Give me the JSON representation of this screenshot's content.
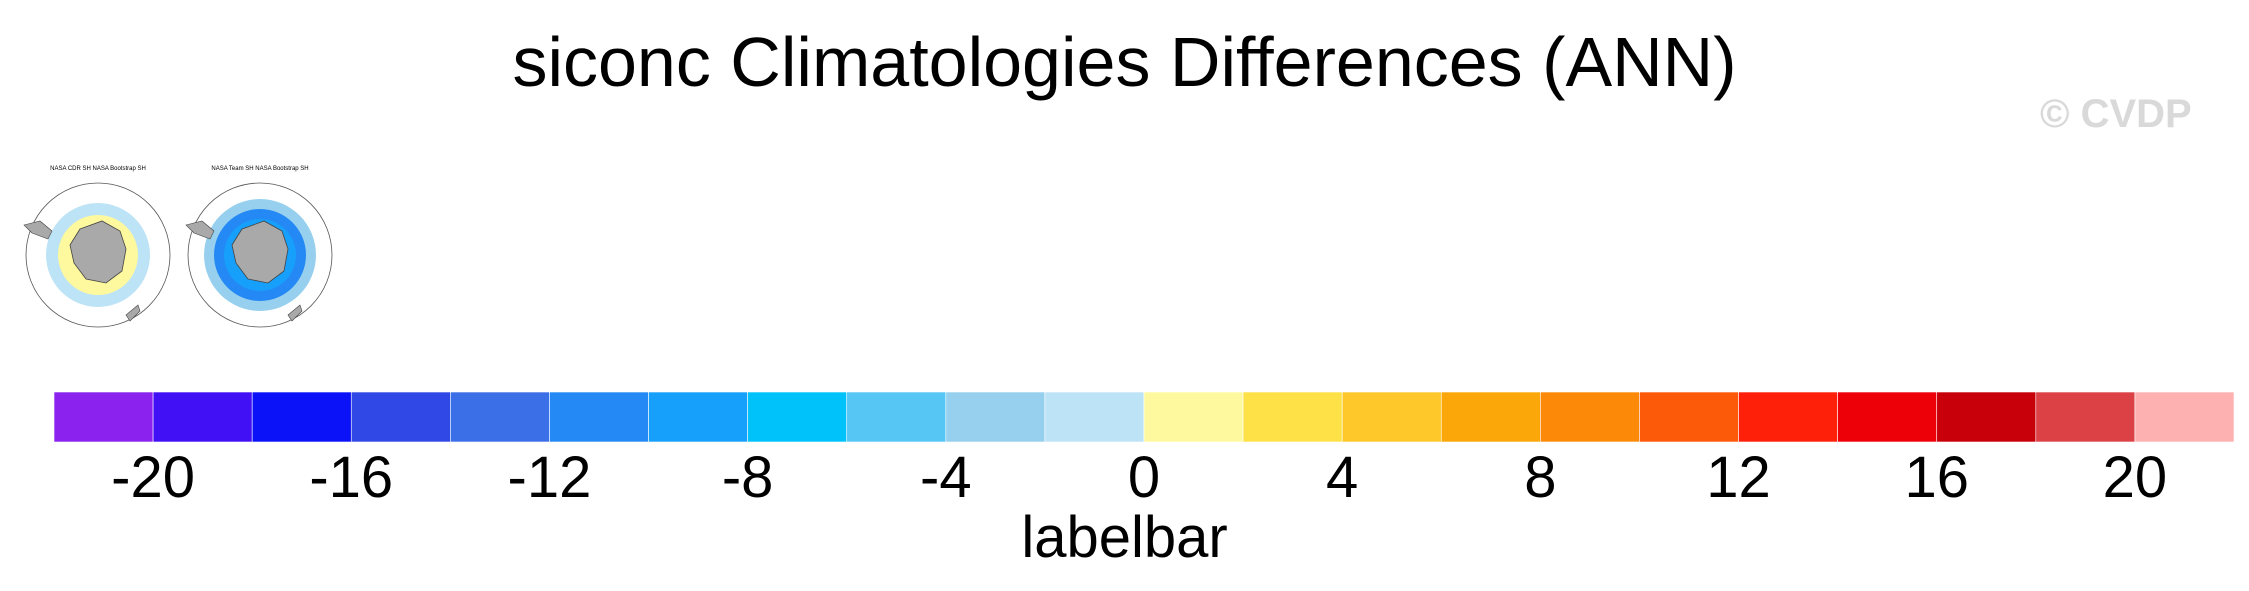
{
  "watermark": "© CVDP",
  "panels": [
    {
      "title": "NASA CDR SH NASA Bootstrap SH"
    },
    {
      "title": "NASA Team SH NASA Bootstrap SH"
    }
  ],
  "chart_data": {
    "type": "heatmap",
    "title": "siconc Climatologies Differences (ANN)",
    "colorbar": {
      "title": "labelbar",
      "range": [
        -22,
        22
      ],
      "boundaries": [
        -22,
        -20,
        -18,
        -16,
        -14,
        -12,
        -10,
        -8,
        -6,
        -4,
        -2,
        0,
        2,
        4,
        6,
        8,
        10,
        12,
        14,
        16,
        18,
        20,
        22
      ],
      "colors": [
        "#8b22ee",
        "#4110f5",
        "#0b12f7",
        "#3049e6",
        "#3a6fe8",
        "#2589f5",
        "#16a0fb",
        "#00c2fa",
        "#56c6f4",
        "#97d0ee",
        "#bde3f6",
        "#fef99e",
        "#fee146",
        "#fec82a",
        "#fca709",
        "#fc8a08",
        "#fc5908",
        "#fe2008",
        "#ee0009",
        "#c70009",
        "#dc4146",
        "#feb1b1"
      ],
      "tick_values": [
        -20,
        -16,
        -12,
        -8,
        -4,
        0,
        4,
        8,
        12,
        16,
        20
      ],
      "tick_labels": [
        "-20",
        "-16",
        "-12",
        "-8",
        "-4",
        "0",
        "4",
        "8",
        "12",
        "16",
        "20"
      ]
    }
  }
}
